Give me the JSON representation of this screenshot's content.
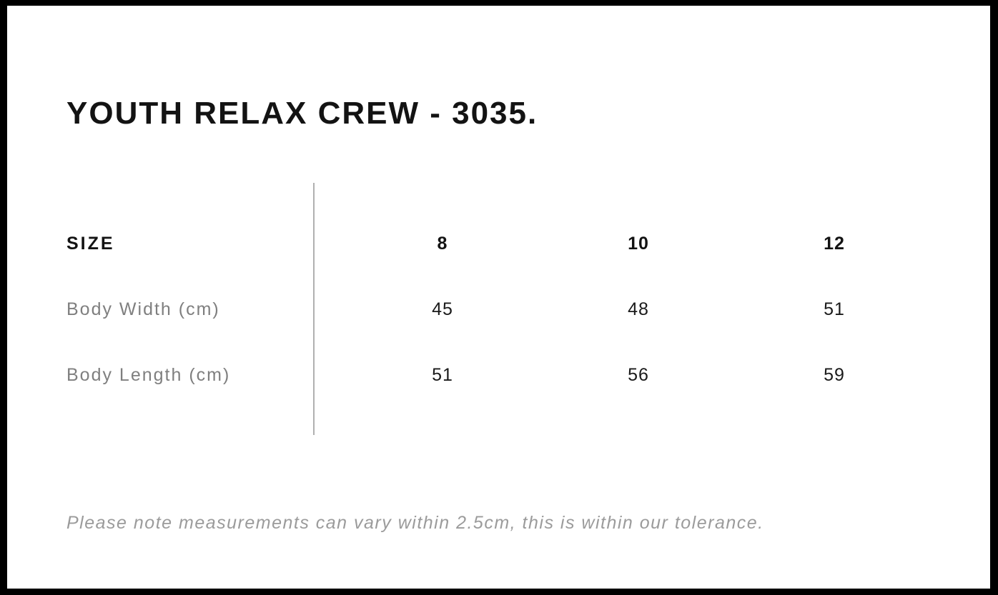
{
  "page": {
    "title": "YOUTH RELAX CREW - 3035.",
    "note": "Please note measurements can vary within 2.5cm, this is within our tolerance."
  },
  "size_chart": {
    "header": {
      "label": "SIZE",
      "sizes": [
        "8",
        "10",
        "12"
      ]
    },
    "rows": [
      {
        "label": "Body Width (cm)",
        "values": [
          "45",
          "48",
          "51"
        ]
      },
      {
        "label": "Body Length (cm)",
        "values": [
          "51",
          "56",
          "59"
        ]
      }
    ]
  },
  "colors": {
    "frame_border": "#000000",
    "background": "#ffffff",
    "title_text": "#131313",
    "row_label_text": "#7f7f7f",
    "value_text": "#1a1a1a",
    "note_text": "#9b9b9b",
    "divider_line": "#b0b0b0"
  }
}
